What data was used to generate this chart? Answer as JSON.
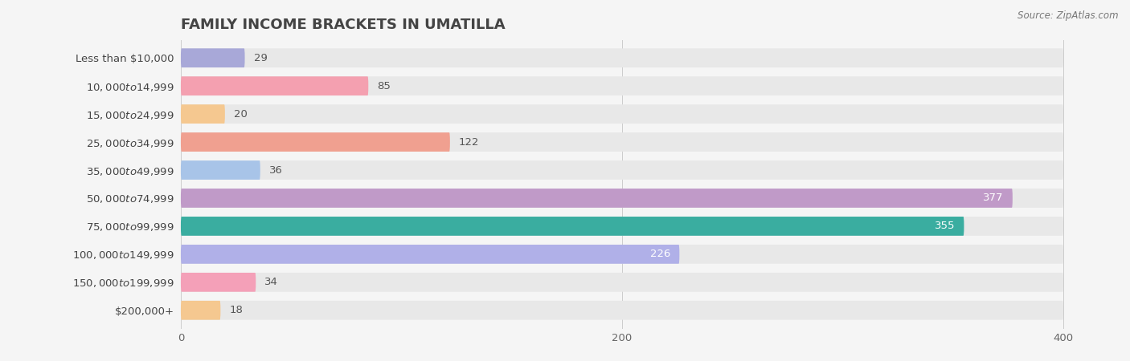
{
  "title": "FAMILY INCOME BRACKETS IN UMATILLA",
  "source": "Source: ZipAtlas.com",
  "categories": [
    "Less than $10,000",
    "$10,000 to $14,999",
    "$15,000 to $24,999",
    "$25,000 to $34,999",
    "$35,000 to $49,999",
    "$50,000 to $74,999",
    "$75,000 to $99,999",
    "$100,000 to $149,999",
    "$150,000 to $199,999",
    "$200,000+"
  ],
  "values": [
    29,
    85,
    20,
    122,
    36,
    377,
    355,
    226,
    34,
    18
  ],
  "bar_colors": [
    "#a8a8d8",
    "#f4a0b0",
    "#f5c890",
    "#f0a090",
    "#a8c4e8",
    "#c09ac8",
    "#3aada0",
    "#b0b0e8",
    "#f4a0b8",
    "#f5c890"
  ],
  "background_color": "#f5f5f5",
  "bar_background_color": "#e8e8e8",
  "xlim": [
    0,
    400
  ],
  "title_fontsize": 13,
  "label_fontsize": 9.5,
  "value_fontsize": 9.5,
  "white_text_threshold": 150
}
